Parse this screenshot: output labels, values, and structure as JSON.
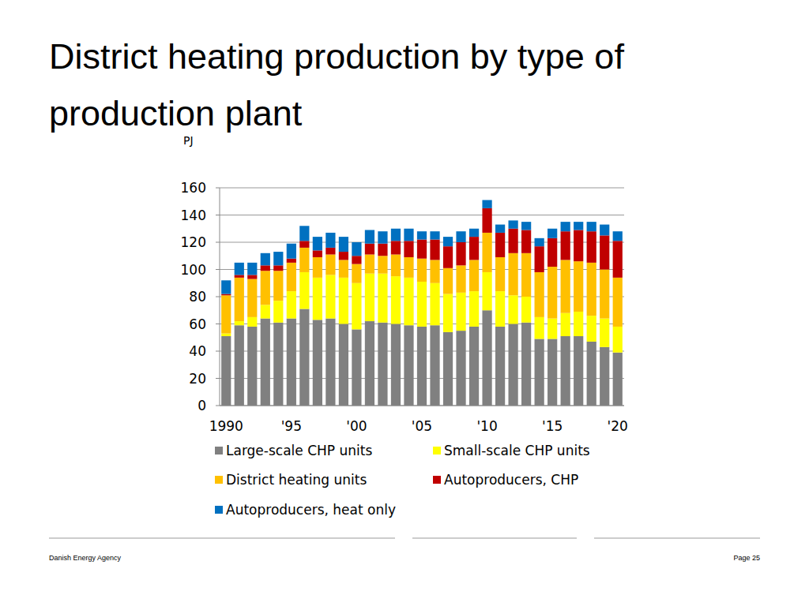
{
  "chart_data": {
    "type": "bar",
    "title": "District heating production by type of production plant",
    "y_label": "PJ",
    "stacked": true,
    "grid": true,
    "legend": "bottom",
    "categories": [
      "1990",
      null,
      null,
      null,
      null,
      "'95",
      null,
      null,
      null,
      null,
      "'00",
      null,
      null,
      null,
      null,
      "'05",
      null,
      null,
      null,
      null,
      "'10",
      null,
      null,
      null,
      null,
      "'15",
      null,
      null,
      null,
      null,
      "'20"
    ],
    "ylim": [
      0,
      160
    ],
    "yticks": [
      0,
      20,
      40,
      60,
      80,
      100,
      120,
      140,
      160
    ],
    "series": [
      {
        "name": "Large-scale CHP units",
        "color": "#808080",
        "values": [
          51,
          59,
          58,
          64,
          61,
          64,
          71,
          63,
          64,
          60,
          56,
          62,
          61,
          60,
          59,
          58,
          59,
          54,
          55,
          58,
          70,
          58,
          60,
          61,
          49,
          49,
          51,
          51,
          47,
          43,
          39
        ]
      },
      {
        "name": "Small-scale CHP units",
        "color": "#ffff00",
        "values": [
          2,
          3,
          7,
          10,
          16,
          20,
          27,
          31,
          32,
          34,
          34,
          35,
          36,
          35,
          35,
          33,
          31,
          28,
          28,
          26,
          28,
          26,
          21,
          19,
          16,
          15,
          17,
          18,
          19,
          21,
          19
        ]
      },
      {
        "name": "District heating units",
        "color": "#ffc000",
        "values": [
          28,
          32,
          28,
          25,
          22,
          21,
          18,
          15,
          15,
          13,
          14,
          14,
          13,
          16,
          15,
          17,
          17,
          19,
          20,
          23,
          29,
          25,
          31,
          32,
          33,
          38,
          39,
          37,
          39,
          36,
          36
        ]
      },
      {
        "name": "Autoproducers, CHP",
        "color": "#c00000",
        "values": [
          1,
          2,
          3,
          4,
          4,
          3,
          5,
          5,
          5,
          6,
          6,
          8,
          9,
          10,
          12,
          14,
          15,
          16,
          17,
          17,
          18,
          18,
          18,
          17,
          19,
          21,
          21,
          23,
          23,
          25,
          27
        ]
      },
      {
        "name": "Autoproducers, heat only",
        "color": "#0070c0",
        "values": [
          10,
          9,
          9,
          9,
          10,
          11,
          11,
          10,
          11,
          11,
          10,
          10,
          9,
          9,
          9,
          6,
          6,
          7,
          8,
          6,
          6,
          6,
          6,
          6,
          6,
          7,
          7,
          6,
          7,
          8,
          7
        ]
      }
    ]
  },
  "footer": {
    "left": "Danish Energy Agency",
    "right": "Page 25"
  }
}
